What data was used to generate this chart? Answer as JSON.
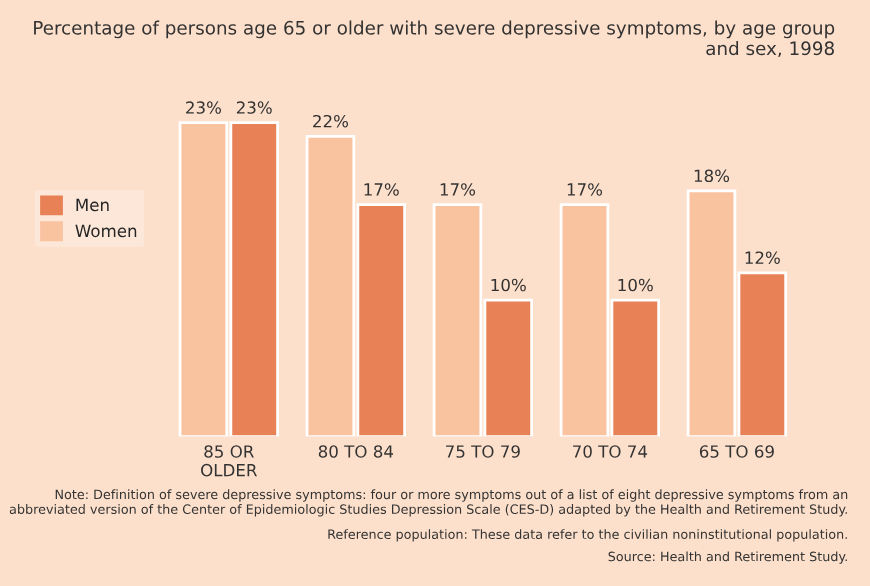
{
  "chart_data": {
    "type": "bar",
    "title": "Percentage of persons age 65 or older with severe depressive symptoms, by age group and sex, 1998",
    "categories": [
      "85 OR\nOLDER",
      "80 TO 84",
      "75 TO 79",
      "70 TO 74",
      "65 TO 69"
    ],
    "series": [
      {
        "name": "Women",
        "color": "#f9c3a0",
        "values": [
          23,
          22,
          17,
          17,
          18
        ],
        "value_labels": [
          "23%",
          "22%",
          "17%",
          "17%",
          "18%"
        ]
      },
      {
        "name": "Men",
        "color": "#e88256",
        "values": [
          23,
          17,
          10,
          10,
          12
        ],
        "value_labels": [
          "23%",
          "17%",
          "10%",
          "10%",
          "12%"
        ]
      }
    ],
    "legend": "left",
    "annotations": [
      "Note: Definition of severe depressive symptoms: four or more symptoms out of a list of eight depressive symptoms from an abbreviated version of the Center of Epidemiologic Studies Depression Scale (CES-D) adapted by the Health and Retirement Study.",
      "Reference population: These data refer to the civilian noninstitutional population.",
      "Source: Health and Retirement Study."
    ]
  }
}
